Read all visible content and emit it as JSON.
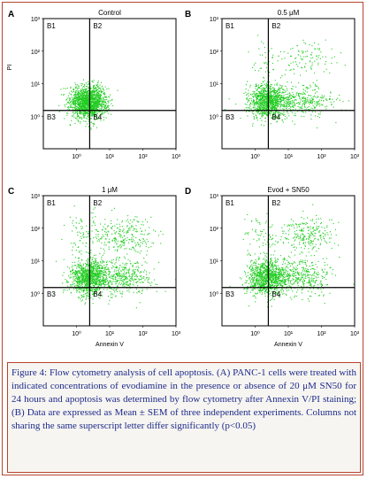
{
  "figure": {
    "caption": "Figure 4: Flow cytometry analysis of cell apoptosis. (A) PANC-1 cells were treated with indicated concentrations of evodiamine in the presence or absence of 20 μM SN50 for 24 hours and apoptosis was determined by flow cytometry after Annexin V/PI staining; (B) Data are expressed as Mean ± SEM of three independent experiments. Columns not sharing the same superscript letter differ significantly (p<0.05)"
  },
  "chart_data": [
    {
      "type": "scatter",
      "panel": "A",
      "title": "Control",
      "xlabel": "",
      "ylabel": "PI",
      "x_scale": "log",
      "y_scale": "log",
      "xlim": [
        0.1,
        1000
      ],
      "ylim": [
        0.1,
        1000
      ],
      "x_ticks": [
        "10⁰",
        "10¹",
        "10²",
        "10³"
      ],
      "y_ticks": [
        "10³",
        "10²",
        "10¹",
        "10⁰"
      ],
      "gates": [
        "B1",
        "B2",
        "B3",
        "B4"
      ],
      "gate_x": 2.5,
      "gate_y": 1.5,
      "point_color": "#22cc22",
      "clusters": [
        {
          "cx": 0.35,
          "cy": 0.45,
          "sx": 0.28,
          "sy": 0.25,
          "n": 1600
        }
      ]
    },
    {
      "type": "scatter",
      "panel": "B",
      "title": "0.5 μM",
      "xlabel": "",
      "ylabel": "",
      "x_scale": "log",
      "y_scale": "log",
      "xlim": [
        0.1,
        1000
      ],
      "ylim": [
        0.1,
        1000
      ],
      "x_ticks": [
        "10⁰",
        "10¹",
        "10²",
        "10³"
      ],
      "y_ticks": [
        "10³",
        "10²",
        "10¹",
        "10⁰"
      ],
      "gates": [
        "B1",
        "B2",
        "B3",
        "B4"
      ],
      "gate_x": 2.5,
      "gate_y": 1.5,
      "point_color": "#22cc22",
      "clusters": [
        {
          "cx": 0.4,
          "cy": 0.45,
          "sx": 0.3,
          "sy": 0.25,
          "n": 1100
        },
        {
          "cx": 1.5,
          "cy": 0.5,
          "sx": 0.45,
          "sy": 0.25,
          "n": 300
        },
        {
          "cx": 1.5,
          "cy": 1.8,
          "sx": 0.55,
          "sy": 0.3,
          "n": 110
        },
        {
          "cx": 0.2,
          "cy": 1.6,
          "sx": 0.25,
          "sy": 0.4,
          "n": 40
        }
      ]
    },
    {
      "type": "scatter",
      "panel": "C",
      "title": "1 μM",
      "xlabel": "Annexin V",
      "ylabel": "",
      "x_scale": "log",
      "y_scale": "log",
      "xlim": [
        0.1,
        1000
      ],
      "ylim": [
        0.1,
        1000
      ],
      "x_ticks": [
        "10⁰",
        "10¹",
        "10²",
        "10³"
      ],
      "y_ticks": [
        "10³",
        "10²",
        "10¹",
        "10⁰"
      ],
      "gates": [
        "B1",
        "B2",
        "B3",
        "B4"
      ],
      "gate_x": 2.5,
      "gate_y": 1.5,
      "point_color": "#22cc22",
      "clusters": [
        {
          "cx": 0.35,
          "cy": 0.5,
          "sx": 0.3,
          "sy": 0.28,
          "n": 1000
        },
        {
          "cx": 1.3,
          "cy": 0.5,
          "sx": 0.5,
          "sy": 0.28,
          "n": 450
        },
        {
          "cx": 1.4,
          "cy": 1.8,
          "sx": 0.45,
          "sy": 0.3,
          "n": 260
        },
        {
          "cx": 0.2,
          "cy": 1.8,
          "sx": 0.25,
          "sy": 0.35,
          "n": 80
        }
      ]
    },
    {
      "type": "scatter",
      "panel": "D",
      "title": "Evod + SN50",
      "xlabel": "Annexin V",
      "ylabel": "",
      "x_scale": "log",
      "y_scale": "log",
      "xlim": [
        0.1,
        1000
      ],
      "ylim": [
        0.1,
        1000
      ],
      "x_ticks": [
        "10⁰",
        "10¹",
        "10²",
        "10³"
      ],
      "y_ticks": [
        "10³",
        "10²",
        "10¹",
        "10⁰"
      ],
      "gates": [
        "B1",
        "B2",
        "B3",
        "B4"
      ],
      "gate_x": 2.5,
      "gate_y": 1.5,
      "point_color": "#22cc22",
      "clusters": [
        {
          "cx": 0.35,
          "cy": 0.5,
          "sx": 0.3,
          "sy": 0.28,
          "n": 1000
        },
        {
          "cx": 1.3,
          "cy": 0.5,
          "sx": 0.5,
          "sy": 0.28,
          "n": 420
        },
        {
          "cx": 1.5,
          "cy": 1.8,
          "sx": 0.45,
          "sy": 0.28,
          "n": 250
        },
        {
          "cx": 0.2,
          "cy": 1.8,
          "sx": 0.25,
          "sy": 0.35,
          "n": 70
        }
      ]
    }
  ]
}
